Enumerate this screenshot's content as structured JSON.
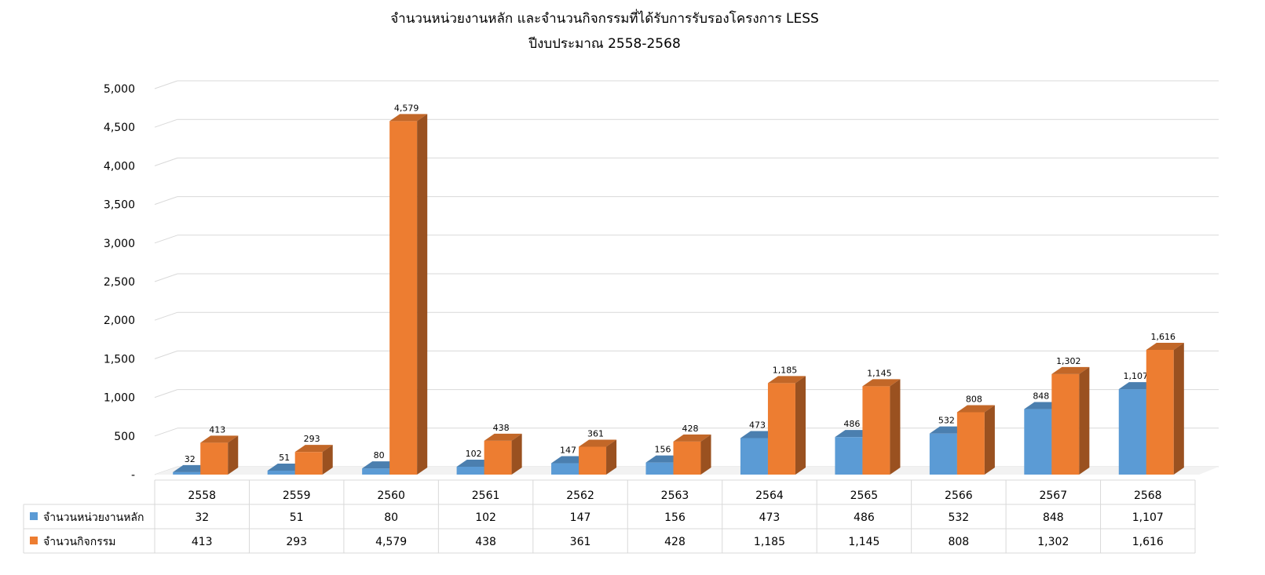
{
  "chart_data": {
    "type": "bar",
    "title": "จำนวนหน่วยงานหลัก และจำนวนกิจกรรมที่ได้รับการรับรองโครงการ LESS",
    "subtitle": "ปีงบประมาณ 2558-2568",
    "categories": [
      "2558",
      "2559",
      "2560",
      "2561",
      "2562",
      "2563",
      "2564",
      "2565",
      "2566",
      "2567",
      "2568"
    ],
    "series": [
      {
        "name": "จำนวนหน่วยงานหลัก",
        "color": "#5b9bd5",
        "values": [
          32,
          51,
          80,
          102,
          147,
          156,
          473,
          486,
          532,
          848,
          1107
        ],
        "labels": [
          "32",
          "51",
          "80",
          "102",
          "147",
          "156",
          "473",
          "486",
          "532",
          "848",
          "1,107"
        ]
      },
      {
        "name": "จำนวนกิจกรรม",
        "color": "#ed7d31",
        "values": [
          413,
          293,
          4579,
          438,
          361,
          428,
          1185,
          1145,
          808,
          1302,
          1616
        ],
        "labels": [
          "413",
          "293",
          "4,579",
          "438",
          "361",
          "428",
          "1,185",
          "1,145",
          "808",
          "1,302",
          "1,616"
        ]
      }
    ],
    "ylim": [
      0,
      5000
    ],
    "yticks": [
      0,
      500,
      1000,
      1500,
      2000,
      2500,
      3000,
      3500,
      4000,
      4500,
      5000
    ],
    "ytick_labels": [
      "-",
      "500",
      "1,000",
      "1,500",
      "2,000",
      "2,500",
      "3,000",
      "3,500",
      "4,000",
      "4,500",
      "5,000"
    ],
    "grid": true,
    "legend": "data table below chart",
    "style": "3d-clustered-column"
  }
}
